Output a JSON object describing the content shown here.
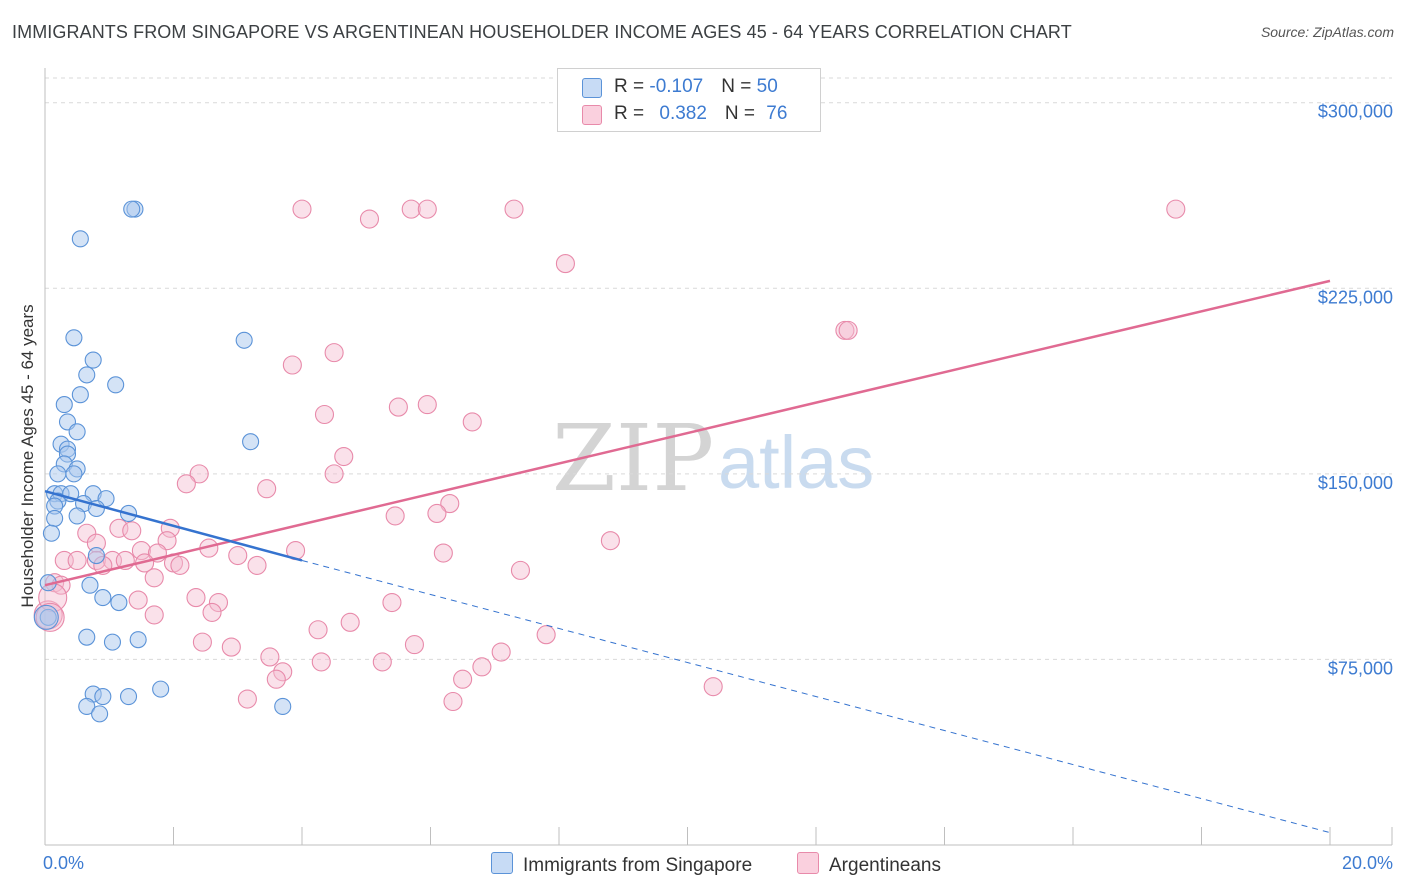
{
  "header": {
    "title": "IMMIGRANTS FROM SINGAPORE VS ARGENTINEAN HOUSEHOLDER INCOME AGES 45 - 64 YEARS CORRELATION CHART",
    "source": "Source: ZipAtlas.com"
  },
  "legend": {
    "series1": {
      "r_label": "R = ",
      "r_value": "-0.107",
      "n_label": "N = ",
      "n_value": "50"
    },
    "series2": {
      "r_label": "R = ",
      "r_value": "0.382",
      "n_label": "N = ",
      "n_value": "76"
    }
  },
  "bottom_legend": {
    "series1": "Immigrants from Singapore",
    "series2": "Argentineans"
  },
  "watermark": {
    "zip": "ZIP",
    "atlas": "atlas"
  },
  "colors": {
    "series1_fill": "#a9c8ee",
    "series1_stroke": "#5b93d8",
    "series1_line": "#3573cf",
    "series2_fill": "#f5bdd0",
    "series2_stroke": "#e88aaa",
    "series2_line": "#e06a92",
    "grid": "#d9d9d9",
    "tick_label": "#3d7bd1"
  },
  "chart_data": {
    "type": "scatter",
    "title": "IMMIGRANTS FROM SINGAPORE VS ARGENTINEAN HOUSEHOLDER INCOME AGES 45 - 64 YEARS CORRELATION CHART",
    "xlabel": "",
    "ylabel": "Householder Income Ages 45 - 64 years",
    "xlim": [
      0,
      20
    ],
    "ylim": [
      0,
      310000
    ],
    "x_tick_labels": [
      "0.0%",
      "20.0%"
    ],
    "y_ticks": [
      75000,
      150000,
      225000,
      300000
    ],
    "y_tick_labels": [
      "$75,000",
      "$150,000",
      "$225,000",
      "$300,000"
    ],
    "grid": true,
    "series": [
      {
        "name": "Immigrants from Singapore",
        "r": -0.107,
        "n": 50,
        "trend": {
          "x": [
            0,
            4
          ],
          "y": [
            143000,
            115000
          ],
          "dashed_to": [
            20,
            5000
          ]
        },
        "points": [
          [
            1.4,
            257000
          ],
          [
            1.35,
            257000
          ],
          [
            0.55,
            245000
          ],
          [
            0.45,
            205000
          ],
          [
            3.1,
            204000
          ],
          [
            0.75,
            196000
          ],
          [
            0.65,
            190000
          ],
          [
            1.1,
            186000
          ],
          [
            0.55,
            182000
          ],
          [
            0.3,
            178000
          ],
          [
            0.35,
            171000
          ],
          [
            0.5,
            167000
          ],
          [
            0.25,
            162000
          ],
          [
            0.35,
            160000
          ],
          [
            0.35,
            158000
          ],
          [
            3.2,
            163000
          ],
          [
            0.3,
            154000
          ],
          [
            0.5,
            152000
          ],
          [
            0.45,
            150000
          ],
          [
            0.2,
            150000
          ],
          [
            0.15,
            142000
          ],
          [
            0.25,
            142000
          ],
          [
            0.75,
            142000
          ],
          [
            0.95,
            140000
          ],
          [
            0.6,
            138000
          ],
          [
            0.2,
            139000
          ],
          [
            0.15,
            137000
          ],
          [
            0.8,
            136000
          ],
          [
            1.3,
            134000
          ],
          [
            0.5,
            133000
          ],
          [
            0.15,
            132000
          ],
          [
            0.1,
            126000
          ],
          [
            0.8,
            117000
          ],
          [
            0.05,
            106000
          ],
          [
            0.7,
            105000
          ],
          [
            0.9,
            100000
          ],
          [
            1.15,
            98000
          ],
          [
            0.05,
            92000
          ],
          [
            0.65,
            84000
          ],
          [
            1.05,
            82000
          ],
          [
            1.45,
            83000
          ],
          [
            1.8,
            63000
          ],
          [
            0.75,
            61000
          ],
          [
            0.9,
            60000
          ],
          [
            1.3,
            60000
          ],
          [
            0.65,
            56000
          ],
          [
            0.85,
            53000
          ],
          [
            3.7,
            56000
          ],
          [
            0.02,
            92000
          ],
          [
            0.4,
            142000
          ]
        ]
      },
      {
        "name": "Argentineans",
        "r": 0.382,
        "n": 76,
        "trend": {
          "x": [
            0,
            20
          ],
          "y": [
            105000,
            228000
          ]
        },
        "points": [
          [
            4.0,
            257000
          ],
          [
            5.05,
            253000
          ],
          [
            5.7,
            257000
          ],
          [
            5.95,
            257000
          ],
          [
            7.3,
            257000
          ],
          [
            17.6,
            257000
          ],
          [
            8.1,
            235000
          ],
          [
            12.45,
            208000
          ],
          [
            12.5,
            208000
          ],
          [
            4.5,
            199000
          ],
          [
            3.85,
            194000
          ],
          [
            5.5,
            177000
          ],
          [
            5.95,
            178000
          ],
          [
            4.35,
            174000
          ],
          [
            6.65,
            171000
          ],
          [
            4.65,
            157000
          ],
          [
            4.5,
            150000
          ],
          [
            2.4,
            150000
          ],
          [
            2.2,
            146000
          ],
          [
            3.45,
            144000
          ],
          [
            6.3,
            138000
          ],
          [
            6.1,
            134000
          ],
          [
            5.45,
            133000
          ],
          [
            8.8,
            123000
          ],
          [
            1.95,
            128000
          ],
          [
            1.15,
            128000
          ],
          [
            1.35,
            127000
          ],
          [
            0.65,
            126000
          ],
          [
            0.8,
            122000
          ],
          [
            1.9,
            123000
          ],
          [
            2.55,
            120000
          ],
          [
            3.9,
            119000
          ],
          [
            1.5,
            119000
          ],
          [
            1.75,
            118000
          ],
          [
            6.2,
            118000
          ],
          [
            3.0,
            117000
          ],
          [
            0.3,
            115000
          ],
          [
            0.5,
            115000
          ],
          [
            0.8,
            115000
          ],
          [
            1.05,
            115000
          ],
          [
            1.25,
            115000
          ],
          [
            1.55,
            114000
          ],
          [
            2.0,
            114000
          ],
          [
            2.1,
            113000
          ],
          [
            0.9,
            113000
          ],
          [
            3.3,
            113000
          ],
          [
            7.4,
            111000
          ],
          [
            1.7,
            108000
          ],
          [
            0.15,
            106000
          ],
          [
            0.25,
            105000
          ],
          [
            2.35,
            100000
          ],
          [
            2.7,
            98000
          ],
          [
            1.45,
            99000
          ],
          [
            5.4,
            98000
          ],
          [
            2.6,
            94000
          ],
          [
            1.7,
            93000
          ],
          [
            4.75,
            90000
          ],
          [
            4.25,
            87000
          ],
          [
            7.8,
            85000
          ],
          [
            2.45,
            82000
          ],
          [
            2.9,
            80000
          ],
          [
            5.75,
            81000
          ],
          [
            7.1,
            78000
          ],
          [
            3.5,
            76000
          ],
          [
            4.3,
            74000
          ],
          [
            5.25,
            74000
          ],
          [
            6.8,
            72000
          ],
          [
            3.7,
            70000
          ],
          [
            6.5,
            67000
          ],
          [
            3.6,
            67000
          ],
          [
            10.4,
            64000
          ],
          [
            3.15,
            59000
          ],
          [
            6.35,
            58000
          ],
          [
            0.05,
            93000
          ],
          [
            0.12,
            100000
          ],
          [
            0.08,
            92000
          ]
        ]
      }
    ]
  }
}
